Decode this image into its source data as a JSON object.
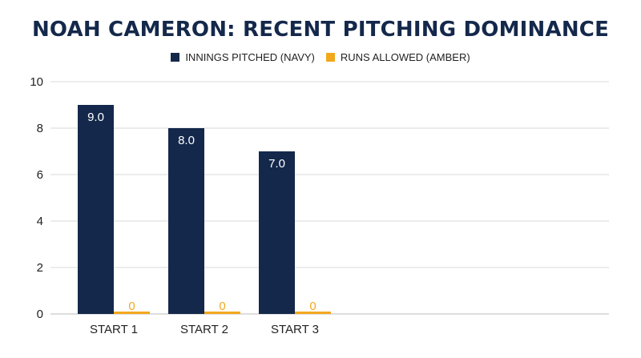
{
  "chart_data": {
    "type": "bar",
    "title": "NOAH CAMERON: RECENT PITCHING DOMINANCE",
    "categories": [
      "START 1",
      "START 2",
      "START 3"
    ],
    "series": [
      {
        "name": "INNINGS PITCHED (NAVY)",
        "values": [
          9.0,
          8.0,
          7.0
        ],
        "color": "#14284b",
        "labels": [
          "9.0",
          "8.0",
          "7.0"
        ]
      },
      {
        "name": "RUNS ALLOWED (AMBER)",
        "values": [
          0,
          0,
          0
        ],
        "color": "#f2a81d",
        "labels": [
          "0",
          "0",
          "0"
        ]
      }
    ],
    "ylim": [
      0,
      10
    ],
    "yticks": [
      "0",
      "2",
      "4",
      "6",
      "8",
      "10"
    ],
    "xlabel": "",
    "ylabel": "",
    "grid": true,
    "legend_position": "top-center"
  }
}
